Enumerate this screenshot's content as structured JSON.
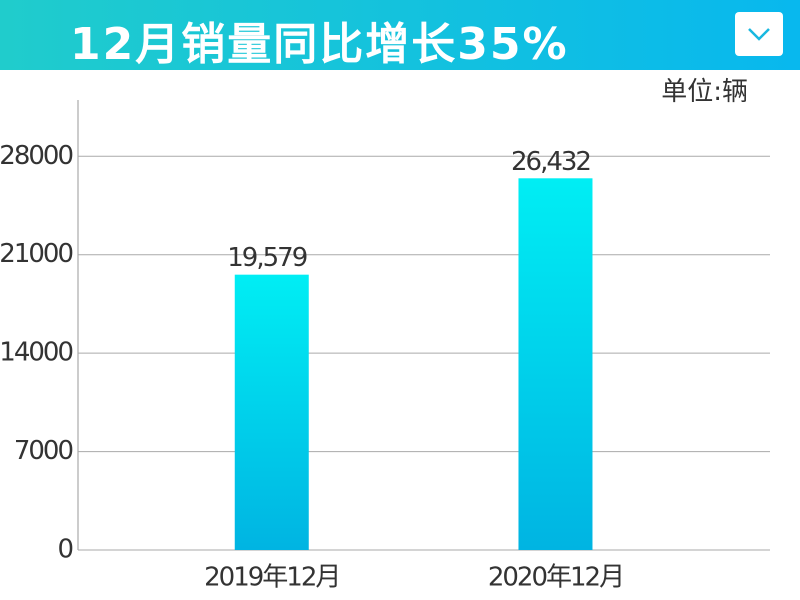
{
  "chart_data": {
    "type": "bar",
    "title": "12月销量同比增长35%",
    "unit": "单位:辆",
    "categories": [
      "2019年12月",
      "2020年12月"
    ],
    "values": [
      19579,
      26432
    ],
    "value_labels": [
      "19,579",
      "26,432"
    ],
    "colors": [
      "#00eef4",
      "#00b4e2"
    ],
    "ylim": [
      0,
      32000
    ],
    "yticks": [
      0,
      7000,
      14000,
      21000,
      28000
    ],
    "grid": true
  }
}
